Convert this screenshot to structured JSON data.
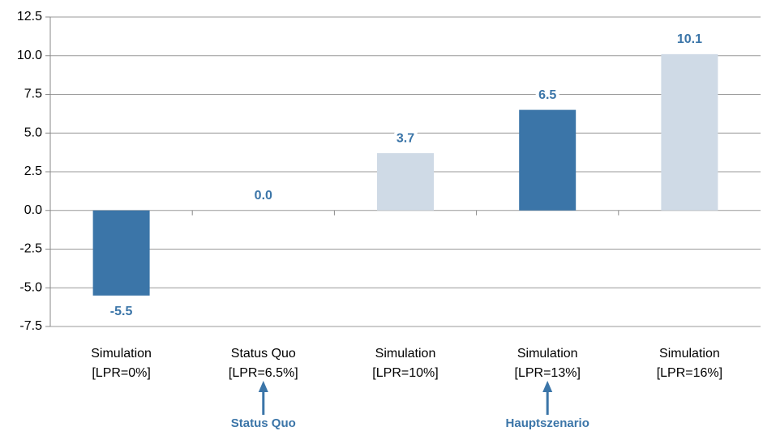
{
  "chart_data": {
    "type": "bar",
    "categories": [
      [
        "Simulation",
        "[LPR=0%]"
      ],
      [
        "Status Quo",
        "[LPR=6.5%]"
      ],
      [
        "Simulation",
        "[LPR=10%]"
      ],
      [
        "Simulation",
        "[LPR=13%]"
      ],
      [
        "Simulation",
        "[LPR=16%]"
      ]
    ],
    "values": [
      -5.5,
      0.0,
      3.7,
      6.5,
      10.1
    ],
    "value_labels": [
      "-5.5",
      "0.0",
      "3.7",
      "6.5",
      "10.1"
    ],
    "colors": [
      "#3b75a8",
      "#3b75a8",
      "#cfdae6",
      "#3b75a8",
      "#cfdae6"
    ],
    "label_color": "#3b75a8",
    "ylim": [
      -7.5,
      12.5
    ],
    "yticks": [
      {
        "value": -7.5,
        "label": "-7.5"
      },
      {
        "value": -5,
        "label": "-5.0"
      },
      {
        "value": -2.5,
        "label": "-2.5"
      },
      {
        "value": 0,
        "label": "0.0"
      },
      {
        "value": 2.5,
        "label": "2.5"
      },
      {
        "value": 5,
        "label": "5.0"
      },
      {
        "value": 7.5,
        "label": "7.5"
      },
      {
        "value": 10,
        "label": "10.0"
      },
      {
        "value": 12.5,
        "label": "12.5"
      }
    ],
    "grid": true,
    "annotations": [
      "Status Quo",
      "Hauptszenario"
    ]
  }
}
